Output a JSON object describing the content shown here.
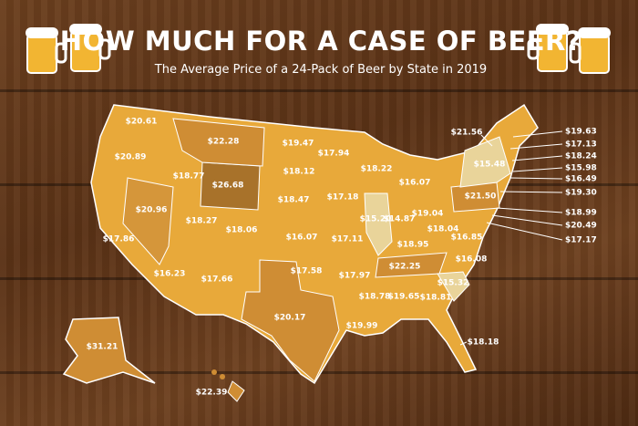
{
  "header": {
    "title": "HOW MUCH FOR A CASE OF BEER?",
    "subtitle": "The Average Price of a 24-Pack of Beer by State in 2019"
  },
  "map": {
    "labels": [
      "$20.61",
      "$20.89",
      "$18.77",
      "$22.28",
      "$19.47",
      "$17.94",
      "$18.22",
      "$16.07",
      "$18.12",
      "$26.68",
      "$20.96",
      "$18.27",
      "$18.06",
      "$18.47",
      "$17.18",
      "$15.20",
      "$14.87",
      "$19.04",
      "$21.50",
      "$15.48",
      "$16.07",
      "$17.11",
      "$18.95",
      "$18.04",
      "$16.85",
      "$16.08",
      "$17.86",
      "$16.23",
      "$17.66",
      "$17.58",
      "$17.97",
      "$22.25",
      "$15.32",
      "$18.78",
      "$19.65",
      "$18.81",
      "$20.17",
      "$19.99",
      "$18.18",
      "$31.21",
      "$22.39",
      "$21.56",
      "$19.63",
      "$17.13",
      "$18.24",
      "$15.98",
      "$16.49",
      "$19.30",
      "$18.99",
      "$20.49",
      "$17.17"
    ]
  }
}
